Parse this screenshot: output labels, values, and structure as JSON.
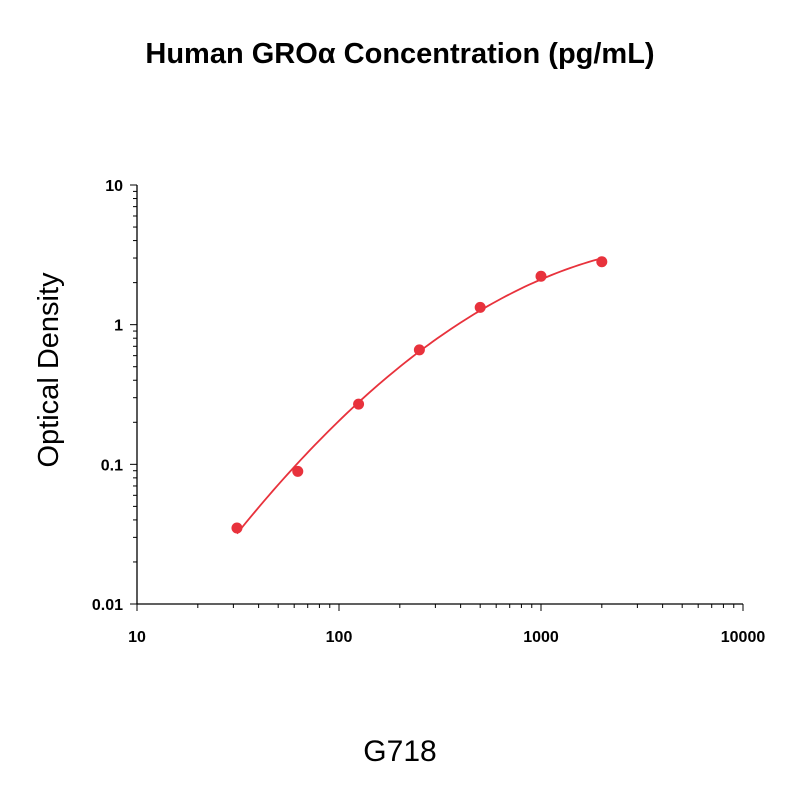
{
  "chart_data": {
    "type": "scatter",
    "title": "Human GROα Concentration (pg/mL)",
    "xlabel": "",
    "ylabel": "Optical Density",
    "caption": "G718",
    "xscale": "log",
    "yscale": "log",
    "xlim": [
      10,
      10000
    ],
    "ylim": [
      0.01,
      10
    ],
    "x_ticks": [
      10,
      100,
      1000,
      10000
    ],
    "x_tick_labels": [
      "10",
      "100",
      "1000",
      "10000"
    ],
    "y_ticks": [
      0.01,
      0.1,
      1,
      10
    ],
    "y_tick_labels": [
      "0.01",
      "0.1",
      "1",
      "10"
    ],
    "grid": false,
    "legend": "none",
    "series": [
      {
        "x": [
          31.25,
          62.5,
          125,
          250,
          500,
          1000,
          2000
        ],
        "y": [
          0.035,
          0.089,
          0.27,
          0.66,
          1.33,
          2.22,
          2.82
        ],
        "color": "#e8323c",
        "fit_curve": true
      }
    ]
  }
}
